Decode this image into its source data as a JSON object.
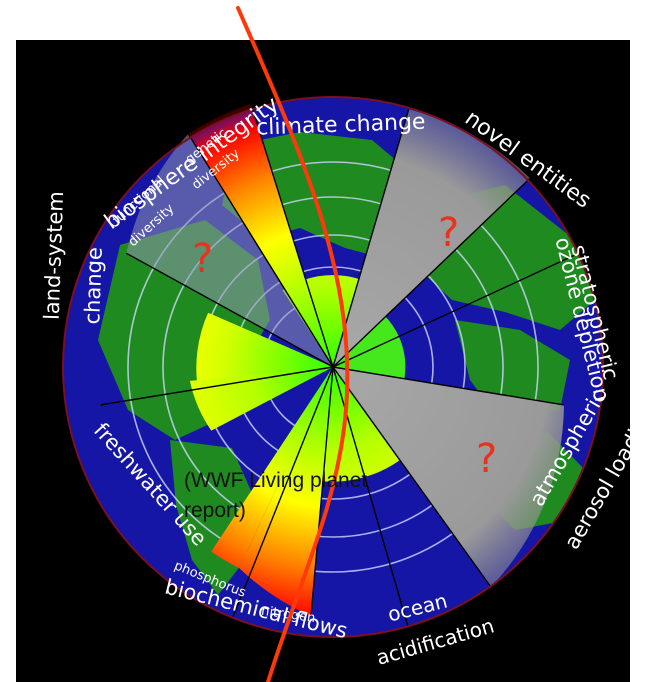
{
  "labels": {
    "climate_change": "climate change",
    "novel_entities": "novel entities",
    "stratospheric": "stratospheric",
    "ozone_depletion": "ozone depletion",
    "atmospheric": "atmospheric",
    "aerosol_loading": "aerosol loading",
    "ocean": "ocean",
    "acidification": "acidification",
    "biochemical_flows": "biochemical flows",
    "nitrogen": "nitrogen",
    "phosphorus": "phosphorus",
    "freshwater_use": "freshwater use",
    "land_system": "land-system",
    "change": "change",
    "biosphere_integrity": "biosphere integrity",
    "functional": "functional",
    "diversity_a": "diversity",
    "genetic": "genetic",
    "diversity_b": "diversity",
    "unknown_mark": "?"
  },
  "note": {
    "line1": "(WWF Living planet",
    "line2": "report)"
  },
  "colors": {
    "background": "#000000",
    "ocean": "#1414a0",
    "land": "#1f8a1f",
    "safe_zone": "#c6f53a",
    "safe_zone_inner": "#44e81c",
    "danger": "#ff0000",
    "unknown": "#a0a0a0",
    "boundary_line": "#ff3a0a",
    "question_mark": "#e8321e"
  }
}
